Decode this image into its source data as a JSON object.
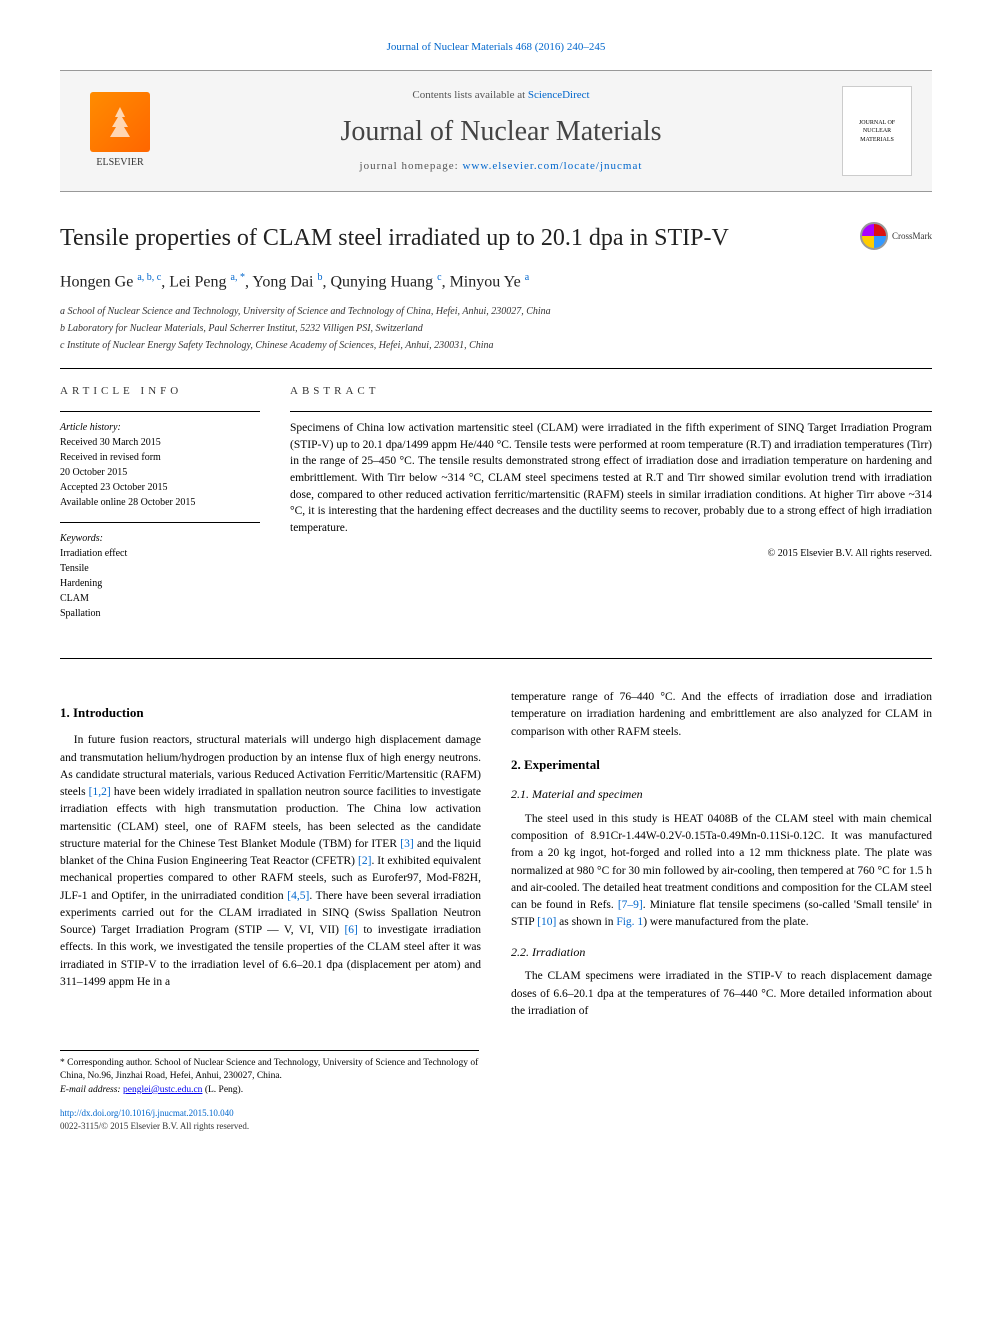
{
  "header": {
    "citation": "Journal of Nuclear Materials 468 (2016) 240–245"
  },
  "banner": {
    "publisher": "ELSEVIER",
    "contents_prefix": "Contents lists available at ",
    "contents_link": "ScienceDirect",
    "journal_name": "Journal of Nuclear Materials",
    "homepage_prefix": "journal homepage: ",
    "homepage_link": "www.elsevier.com/locate/jnucmat",
    "cover_text": "JOURNAL OF NUCLEAR MATERIALS"
  },
  "crossmark": "CrossMark",
  "article": {
    "title": "Tensile properties of CLAM steel irradiated up to 20.1 dpa in STIP-V",
    "authors_html": "Hongen Ge <sup>a, b, c</sup>, Lei Peng <sup>a, *</sup>, Yong Dai <sup>b</sup>, Qunying Huang <sup>c</sup>, Minyou Ye <sup>a</sup>",
    "affiliations": [
      "a School of Nuclear Science and Technology, University of Science and Technology of China, Hefei, Anhui, 230027, China",
      "b Laboratory for Nuclear Materials, Paul Scherrer Institut, 5232 Villigen PSI, Switzerland",
      "c Institute of Nuclear Energy Safety Technology, Chinese Academy of Sciences, Hefei, Anhui, 230031, China"
    ]
  },
  "article_info": {
    "heading": "ARTICLE INFO",
    "history_label": "Article history:",
    "history": [
      "Received 30 March 2015",
      "Received in revised form",
      "20 October 2015",
      "Accepted 23 October 2015",
      "Available online 28 October 2015"
    ],
    "keywords_label": "Keywords:",
    "keywords": [
      "Irradiation effect",
      "Tensile",
      "Hardening",
      "CLAM",
      "Spallation"
    ]
  },
  "abstract": {
    "heading": "ABSTRACT",
    "text": "Specimens of China low activation martensitic steel (CLAM) were irradiated in the fifth experiment of SINQ Target Irradiation Program (STIP-V) up to 20.1 dpa/1499 appm He/440 °C. Tensile tests were performed at room temperature (R.T) and irradiation temperatures (Tirr) in the range of 25–450 °C. The tensile results demonstrated strong effect of irradiation dose and irradiation temperature on hardening and embrittlement. With Tirr below ~314 °C, CLAM steel specimens tested at R.T and Tirr showed similar evolution trend with irradiation dose, compared to other reduced activation ferritic/martensitic (RAFM) steels in similar irradiation conditions. At higher Tirr above ~314 °C, it is interesting that the hardening effect decreases and the ductility seems to recover, probably due to a strong effect of high irradiation temperature.",
    "copyright": "© 2015 Elsevier B.V. All rights reserved."
  },
  "body": {
    "s1_heading": "1. Introduction",
    "s1_text": "In future fusion reactors, structural materials will undergo high displacement damage and transmutation helium/hydrogen production by an intense flux of high energy neutrons. As candidate structural materials, various Reduced Activation Ferritic/Martensitic (RAFM) steels [1,2] have been widely irradiated in spallation neutron source facilities to investigate irradiation effects with high transmutation production. The China low activation martensitic (CLAM) steel, one of RAFM steels, has been selected as the candidate structure material for the Chinese Test Blanket Module (TBM) for ITER [3] and the liquid blanket of the China Fusion Engineering Teat Reactor (CFETR) [2]. It exhibited equivalent mechanical properties compared to other RAFM steels, such as Eurofer97, Mod-F82H, JLF-1 and Optifer, in the unirradiated condition [4,5]. There have been several irradiation experiments carried out for the CLAM irradiated in SINQ (Swiss Spallation Neutron Source) Target Irradiation Program (STIP — V, VI, VII) [6] to investigate irradiation effects. In this work, we investigated the tensile properties of the CLAM steel after it was irradiated in STIP-V to the irradiation level of 6.6–20.1 dpa (displacement per atom) and 311–1499 appm He in a",
    "s1_cont": "temperature range of 76–440 °C. And the effects of irradiation dose and irradiation temperature on irradiation hardening and embrittlement are also analyzed for CLAM in comparison with other RAFM steels.",
    "s2_heading": "2. Experimental",
    "s21_heading": "2.1. Material and specimen",
    "s21_text": "The steel used in this study is HEAT 0408B of the CLAM steel with main chemical composition of 8.91Cr-1.44W-0.2V-0.15Ta-0.49Mn-0.11Si-0.12C. It was manufactured from a 20 kg ingot, hot-forged and rolled into a 12 mm thickness plate. The plate was normalized at 980 °C for 30 min followed by air-cooling, then tempered at 760 °C for 1.5 h and air-cooled. The detailed heat treatment conditions and composition for the CLAM steel can be found in Refs. [7–9]. Miniature flat tensile specimens (so-called 'Small tensile' in STIP [10] as shown in Fig. 1) were manufactured from the plate.",
    "s22_heading": "2.2. Irradiation",
    "s22_text": "The CLAM specimens were irradiated in the STIP-V to reach displacement damage doses of 6.6–20.1 dpa at the temperatures of 76–440 °C. More detailed information about the irradiation of"
  },
  "footnote": {
    "corresponding": "* Corresponding author. School of Nuclear Science and Technology, University of Science and Technology of China, No.96, Jinzhai Road, Hefei, Anhui, 230027, China.",
    "email_label": "E-mail address:",
    "email": "penglei@ustc.edu.cn",
    "email_name": "(L. Peng)."
  },
  "footer": {
    "doi": "http://dx.doi.org/10.1016/j.jnucmat.2015.10.040",
    "issn": "0022-3115/© 2015 Elsevier B.V. All rights reserved."
  },
  "refs": {
    "r12": "[1,2]",
    "r3": "[3]",
    "r2": "[2]",
    "r45": "[4,5]",
    "r6": "[6]",
    "r79": "[7–9]",
    "r10": "[10]",
    "fig1": "Fig. 1"
  }
}
